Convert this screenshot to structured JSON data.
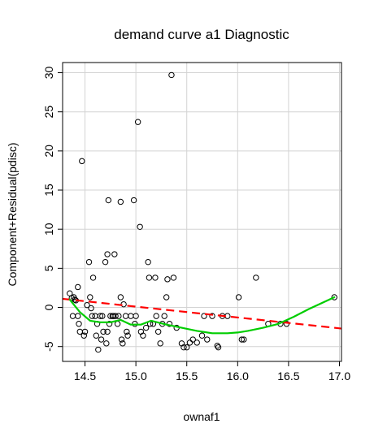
{
  "chart_data": {
    "type": "scatter",
    "title": "demand curve a1 Diagnostic",
    "xlabel": "ownaf1",
    "ylabel": "Component+Residual(pdisc)",
    "xlim": [
      14.28,
      17.02
    ],
    "ylim": [
      -6.9,
      31.3
    ],
    "grid": true,
    "xticks": [
      14.5,
      15.0,
      15.5,
      16.0,
      16.5,
      17.0
    ],
    "xtick_labels": [
      "14.5",
      "15.0",
      "15.5",
      "16.0",
      "16.5",
      "17.0"
    ],
    "yticks": [
      -5,
      0,
      5,
      10,
      15,
      20,
      25,
      30
    ],
    "ytick_labels": [
      "-5",
      "0",
      "5",
      "10",
      "15",
      "20",
      "25",
      "30"
    ],
    "colors": {
      "points": "#000000",
      "regression": "#ff0000",
      "smooth": "#00cd00",
      "grid": "#d3d3d3"
    },
    "points": [
      [
        14.35,
        1.8
      ],
      [
        14.37,
        1.2
      ],
      [
        14.38,
        -1.1
      ],
      [
        14.39,
        1.3
      ],
      [
        14.4,
        1.0
      ],
      [
        14.41,
        0.9
      ],
      [
        14.43,
        -1.1
      ],
      [
        14.43,
        2.6
      ],
      [
        14.44,
        -2.1
      ],
      [
        14.45,
        -3.1
      ],
      [
        14.47,
        18.7
      ],
      [
        14.49,
        -3.6
      ],
      [
        14.5,
        -3.1
      ],
      [
        14.52,
        0.3
      ],
      [
        14.54,
        5.8
      ],
      [
        14.55,
        1.3
      ],
      [
        14.56,
        -0.1
      ],
      [
        14.57,
        -1.1
      ],
      [
        14.58,
        3.8
      ],
      [
        14.6,
        -1.1
      ],
      [
        14.61,
        -3.6
      ],
      [
        14.62,
        -2.1
      ],
      [
        14.63,
        -5.4
      ],
      [
        14.65,
        -1.1
      ],
      [
        14.66,
        -4.1
      ],
      [
        14.67,
        -1.1
      ],
      [
        14.68,
        -3.1
      ],
      [
        14.7,
        5.8
      ],
      [
        14.71,
        -4.6
      ],
      [
        14.72,
        6.8
      ],
      [
        14.72,
        -3.1
      ],
      [
        14.73,
        13.7
      ],
      [
        14.74,
        -2.1
      ],
      [
        14.75,
        -1.1
      ],
      [
        14.77,
        -1.1
      ],
      [
        14.78,
        -1.1
      ],
      [
        14.79,
        6.8
      ],
      [
        14.8,
        -1.1
      ],
      [
        14.82,
        -2.1
      ],
      [
        14.83,
        -1.1
      ],
      [
        14.85,
        13.5
      ],
      [
        14.85,
        1.3
      ],
      [
        14.86,
        -4.1
      ],
      [
        14.87,
        -4.6
      ],
      [
        14.88,
        0.4
      ],
      [
        14.9,
        -1.1
      ],
      [
        14.91,
        -3.1
      ],
      [
        14.92,
        -3.6
      ],
      [
        14.95,
        -1.1
      ],
      [
        14.98,
        13.7
      ],
      [
        14.99,
        -2.1
      ],
      [
        15.0,
        -1.1
      ],
      [
        15.02,
        23.7
      ],
      [
        15.04,
        10.3
      ],
      [
        15.05,
        -3.1
      ],
      [
        15.07,
        -3.6
      ],
      [
        15.1,
        -2.6
      ],
      [
        15.12,
        5.8
      ],
      [
        15.13,
        3.8
      ],
      [
        15.14,
        -2.1
      ],
      [
        15.17,
        -2.1
      ],
      [
        15.19,
        3.8
      ],
      [
        15.2,
        -1.1
      ],
      [
        15.22,
        -3.1
      ],
      [
        15.24,
        -4.6
      ],
      [
        15.26,
        -2.1
      ],
      [
        15.28,
        -1.1
      ],
      [
        15.3,
        1.3
      ],
      [
        15.31,
        3.6
      ],
      [
        15.33,
        -2.1
      ],
      [
        15.35,
        29.7
      ],
      [
        15.37,
        3.8
      ],
      [
        15.4,
        -2.6
      ],
      [
        15.45,
        -4.6
      ],
      [
        15.47,
        -5.1
      ],
      [
        15.5,
        -5.1
      ],
      [
        15.53,
        -4.5
      ],
      [
        15.56,
        -4.1
      ],
      [
        15.6,
        -4.5
      ],
      [
        15.65,
        -3.6
      ],
      [
        15.67,
        -1.1
      ],
      [
        15.7,
        -4.1
      ],
      [
        15.75,
        -1.1
      ],
      [
        15.8,
        -4.9
      ],
      [
        15.81,
        -5.1
      ],
      [
        15.85,
        -1.1
      ],
      [
        15.9,
        -1.1
      ],
      [
        16.01,
        1.3
      ],
      [
        16.04,
        -4.1
      ],
      [
        16.06,
        -4.1
      ],
      [
        16.18,
        3.8
      ],
      [
        16.3,
        -2.1
      ],
      [
        16.42,
        -2.1
      ],
      [
        16.48,
        -2.1
      ],
      [
        16.95,
        1.3
      ]
    ],
    "regression_line": {
      "x": [
        14.28,
        17.02
      ],
      "y": [
        1.1,
        -2.7
      ]
    },
    "smooth_line": {
      "x": [
        14.35,
        14.45,
        14.55,
        14.65,
        14.75,
        14.85,
        14.95,
        15.05,
        15.15,
        15.3,
        15.45,
        15.6,
        15.75,
        15.9,
        16.0,
        16.1,
        16.25,
        16.4,
        16.55,
        16.7,
        16.95
      ],
      "y": [
        1.0,
        -0.6,
        -1.7,
        -1.9,
        -1.9,
        -1.6,
        -2.2,
        -2.2,
        -1.7,
        -2.2,
        -2.6,
        -3.0,
        -3.3,
        -3.3,
        -3.2,
        -3.0,
        -2.6,
        -2.1,
        -1.2,
        -0.2,
        1.3
      ]
    }
  }
}
